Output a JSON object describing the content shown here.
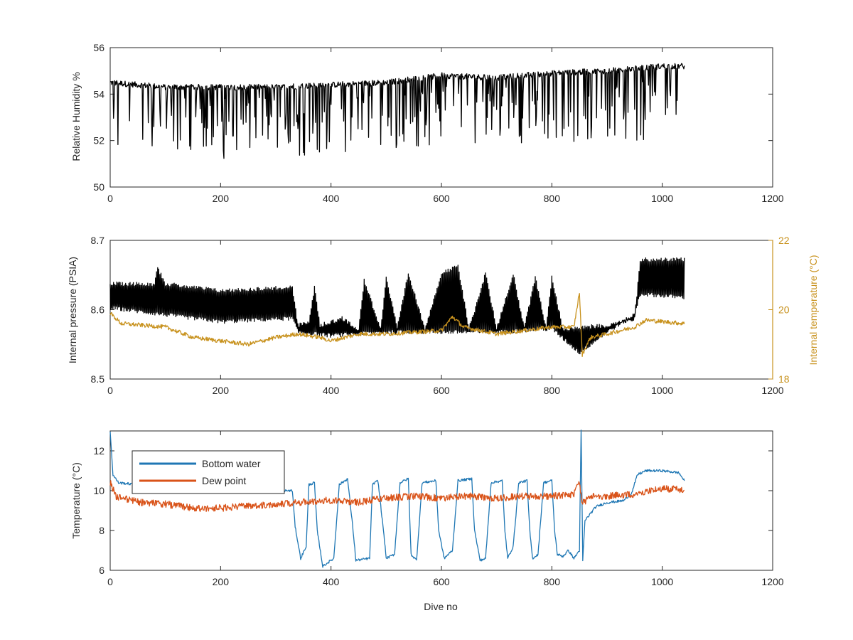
{
  "chart_data": [
    {
      "type": "line",
      "title": "",
      "xlabel": "",
      "ylabel": "Relative Humidity %",
      "xlim": [
        0,
        1200
      ],
      "ylim": [
        50,
        56
      ],
      "xticks": [
        0,
        200,
        400,
        600,
        800,
        1000,
        1200
      ],
      "yticks": [
        50,
        52,
        54,
        56
      ],
      "grid": false,
      "series": [
        {
          "color": "#000000",
          "description_points": [
            [
              0,
              54.5
            ],
            [
              100,
              54.3
            ],
            [
              200,
              54.3
            ],
            [
              300,
              54.3
            ],
            [
              400,
              54.4
            ],
            [
              500,
              54.5
            ],
            [
              600,
              54.8
            ],
            [
              700,
              54.7
            ],
            [
              800,
              54.9
            ],
            [
              900,
              55.0
            ],
            [
              1000,
              55.2
            ],
            [
              1040,
              55.2
            ]
          ],
          "dip_min_points": [
            [
              10,
              51.4
            ],
            [
              50,
              51.4
            ],
            [
              100,
              51.5
            ],
            [
              200,
              51.2
            ],
            [
              300,
              51.4
            ],
            [
              380,
              51.1
            ],
            [
              450,
              51.6
            ],
            [
              500,
              51.5
            ],
            [
              600,
              51.8
            ],
            [
              700,
              51.9
            ],
            [
              800,
              51.9
            ],
            [
              900,
              51.9
            ],
            [
              1000,
              52.1
            ],
            [
              1040,
              52.3
            ]
          ]
        }
      ]
    },
    {
      "type": "line",
      "title": "",
      "xlabel": "",
      "ylabel": "Internal pressure (PSIA)",
      "y2label": "Internal temperature (°C)",
      "xlim": [
        0,
        1200
      ],
      "ylim": [
        8.5,
        8.7
      ],
      "y2lim": [
        18,
        22
      ],
      "xticks": [
        0,
        200,
        400,
        600,
        800,
        1000,
        1200
      ],
      "yticks": [
        8.5,
        8.6,
        8.7
      ],
      "y2ticks": [
        18,
        20,
        22
      ],
      "y2color": "#c8921e",
      "grid": false,
      "series": [
        {
          "axis": "left",
          "color": "#000000",
          "upper_points": [
            [
              0,
              8.64
            ],
            [
              80,
              8.64
            ],
            [
              85,
              8.665
            ],
            [
              100,
              8.64
            ],
            [
              200,
              8.63
            ],
            [
              330,
              8.635
            ],
            [
              340,
              8.58
            ],
            [
              360,
              8.585
            ],
            [
              370,
              8.635
            ],
            [
              380,
              8.58
            ],
            [
              420,
              8.59
            ],
            [
              450,
              8.575
            ],
            [
              460,
              8.645
            ],
            [
              490,
              8.575
            ],
            [
              500,
              8.65
            ],
            [
              520,
              8.575
            ],
            [
              540,
              8.655
            ],
            [
              570,
              8.575
            ],
            [
              600,
              8.655
            ],
            [
              630,
              8.665
            ],
            [
              650,
              8.575
            ],
            [
              680,
              8.655
            ],
            [
              700,
              8.575
            ],
            [
              730,
              8.655
            ],
            [
              750,
              8.575
            ],
            [
              770,
              8.65
            ],
            [
              790,
              8.575
            ],
            [
              800,
              8.65
            ],
            [
              820,
              8.575
            ],
            [
              900,
              8.58
            ],
            [
              950,
              8.59
            ],
            [
              960,
              8.675
            ],
            [
              1040,
              8.675
            ]
          ],
          "lower_points": [
            [
              0,
              8.6
            ],
            [
              100,
              8.59
            ],
            [
              200,
              8.58
            ],
            [
              330,
              8.585
            ],
            [
              340,
              8.565
            ],
            [
              400,
              8.56
            ],
            [
              500,
              8.565
            ],
            [
              600,
              8.565
            ],
            [
              700,
              8.565
            ],
            [
              800,
              8.57
            ],
            [
              850,
              8.535
            ],
            [
              900,
              8.565
            ],
            [
              950,
              8.59
            ],
            [
              960,
              8.62
            ],
            [
              1040,
              8.615
            ]
          ]
        },
        {
          "axis": "right",
          "color": "#c8921e",
          "points": [
            [
              0,
              19.9
            ],
            [
              20,
              19.6
            ],
            [
              100,
              19.5
            ],
            [
              150,
              19.2
            ],
            [
              250,
              19.0
            ],
            [
              300,
              19.2
            ],
            [
              340,
              19.3
            ],
            [
              380,
              19.2
            ],
            [
              400,
              19.1
            ],
            [
              450,
              19.3
            ],
            [
              500,
              19.3
            ],
            [
              600,
              19.4
            ],
            [
              620,
              19.8
            ],
            [
              640,
              19.5
            ],
            [
              700,
              19.3
            ],
            [
              800,
              19.5
            ],
            [
              840,
              19.5
            ],
            [
              850,
              20.5
            ],
            [
              855,
              18.7
            ],
            [
              870,
              19.2
            ],
            [
              900,
              19.3
            ],
            [
              950,
              19.5
            ],
            [
              970,
              19.7
            ],
            [
              1040,
              19.6
            ]
          ]
        }
      ]
    },
    {
      "type": "line",
      "title": "",
      "xlabel": "Dive no",
      "ylabel": "Temperature (°C)",
      "xlim": [
        0,
        1200
      ],
      "ylim": [
        6,
        13
      ],
      "xticks": [
        0,
        200,
        400,
        600,
        800,
        1000,
        1200
      ],
      "yticks": [
        6,
        8,
        10,
        12
      ],
      "grid": false,
      "legend": {
        "position": "top-left",
        "entries": [
          {
            "name": "Bottom water",
            "color": "#1f77b4"
          },
          {
            "name": "Dew point",
            "color": "#d95319"
          }
        ]
      },
      "series": [
        {
          "name": "Bottom water",
          "color": "#1f77b4",
          "points": [
            [
              0,
              13.0
            ],
            [
              5,
              10.8
            ],
            [
              15,
              10.4
            ],
            [
              50,
              10.3
            ],
            [
              100,
              10.2
            ],
            [
              200,
              10.0
            ],
            [
              300,
              10.0
            ],
            [
              330,
              10.0
            ],
            [
              335,
              8.2
            ],
            [
              345,
              6.6
            ],
            [
              355,
              7.2
            ],
            [
              360,
              10.3
            ],
            [
              370,
              10.4
            ],
            [
              375,
              8.0
            ],
            [
              385,
              6.2
            ],
            [
              405,
              6.6
            ],
            [
              415,
              10.3
            ],
            [
              430,
              10.6
            ],
            [
              440,
              8.0
            ],
            [
              445,
              6.5
            ],
            [
              470,
              6.6
            ],
            [
              475,
              10.3
            ],
            [
              485,
              10.5
            ],
            [
              495,
              8.0
            ],
            [
              500,
              6.6
            ],
            [
              515,
              6.8
            ],
            [
              525,
              10.4
            ],
            [
              540,
              10.6
            ],
            [
              545,
              6.8
            ],
            [
              555,
              6.5
            ],
            [
              565,
              10.4
            ],
            [
              590,
              10.5
            ],
            [
              595,
              8.0
            ],
            [
              605,
              6.6
            ],
            [
              620,
              7.0
            ],
            [
              630,
              10.5
            ],
            [
              655,
              10.6
            ],
            [
              660,
              8.0
            ],
            [
              670,
              6.5
            ],
            [
              680,
              6.6
            ],
            [
              690,
              10.4
            ],
            [
              710,
              10.5
            ],
            [
              715,
              8.0
            ],
            [
              720,
              6.6
            ],
            [
              730,
              7.2
            ],
            [
              740,
              10.4
            ],
            [
              755,
              10.5
            ],
            [
              760,
              8.0
            ],
            [
              765,
              6.6
            ],
            [
              775,
              6.8
            ],
            [
              785,
              10.4
            ],
            [
              800,
              10.5
            ],
            [
              805,
              8.0
            ],
            [
              810,
              6.8
            ],
            [
              820,
              6.7
            ],
            [
              830,
              7.0
            ],
            [
              840,
              6.6
            ],
            [
              850,
              7.0
            ],
            [
              853,
              13.0
            ],
            [
              856,
              6.5
            ],
            [
              860,
              8.5
            ],
            [
              880,
              9.2
            ],
            [
              900,
              9.4
            ],
            [
              930,
              9.5
            ],
            [
              945,
              9.9
            ],
            [
              955,
              10.8
            ],
            [
              970,
              11.0
            ],
            [
              1000,
              11.0
            ],
            [
              1030,
              10.9
            ],
            [
              1040,
              10.5
            ]
          ]
        },
        {
          "name": "Dew point",
          "color": "#d95319",
          "points": [
            [
              0,
              10.6
            ],
            [
              10,
              9.9
            ],
            [
              50,
              9.6
            ],
            [
              100,
              9.5
            ],
            [
              150,
              9.3
            ],
            [
              200,
              9.3
            ],
            [
              250,
              9.4
            ],
            [
              300,
              9.5
            ],
            [
              350,
              9.6
            ],
            [
              400,
              9.7
            ],
            [
              450,
              9.6
            ],
            [
              500,
              9.8
            ],
            [
              550,
              9.9
            ],
            [
              600,
              9.8
            ],
            [
              650,
              9.9
            ],
            [
              700,
              9.8
            ],
            [
              750,
              9.9
            ],
            [
              800,
              9.9
            ],
            [
              840,
              10.0
            ],
            [
              850,
              10.6
            ],
            [
              855,
              9.5
            ],
            [
              870,
              9.9
            ],
            [
              900,
              9.9
            ],
            [
              950,
              10.0
            ],
            [
              1000,
              10.3
            ],
            [
              1040,
              10.2
            ]
          ]
        }
      ]
    }
  ]
}
